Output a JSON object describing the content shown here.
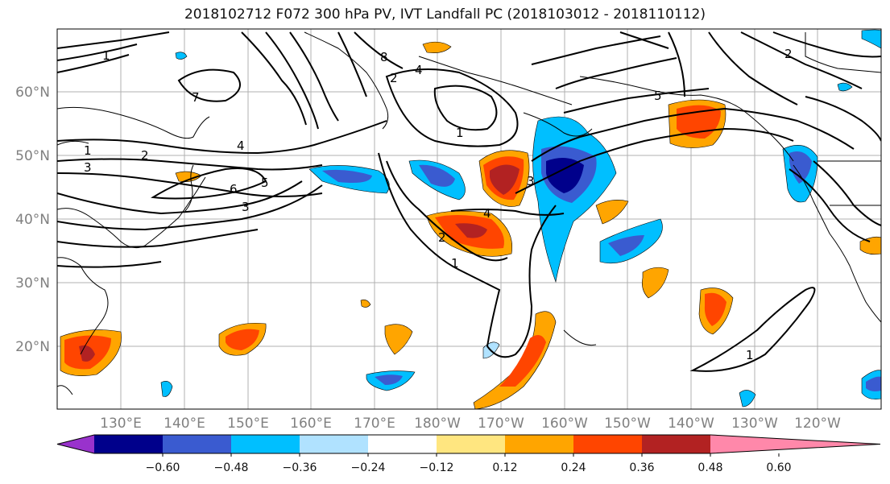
{
  "title": "2018102712 F072 300 hPa PV, IVT Landfall PC (2018103012 - 2018110112)",
  "map": {
    "lat_labels": [
      "60°N",
      "50°N",
      "40°N",
      "30°N",
      "20°N"
    ],
    "lon_labels": [
      "130°E",
      "140°E",
      "150°E",
      "160°E",
      "170°E",
      "180°W",
      "170°W",
      "160°W",
      "150°W",
      "140°W",
      "130°W",
      "120°W"
    ],
    "contour_labels": [
      "1",
      "2",
      "3",
      "4",
      "5",
      "6",
      "7",
      "8",
      "1",
      "2",
      "3",
      "4",
      "5",
      "3",
      "1",
      "2",
      "4",
      "1",
      "2",
      "1"
    ]
  },
  "colorbar": {
    "ticks": [
      "−0.60",
      "−0.48",
      "−0.36",
      "−0.24",
      "−0.12",
      "0.12",
      "0.24",
      "0.36",
      "0.48",
      "0.60"
    ],
    "colors": [
      "#9932cc",
      "#00008b",
      "#3a5bd0",
      "#00bfff",
      "#b0e2ff",
      "#ffffff",
      "#ffe680",
      "#ffa500",
      "#ff4500",
      "#b22222",
      "#ff88aa"
    ]
  }
}
